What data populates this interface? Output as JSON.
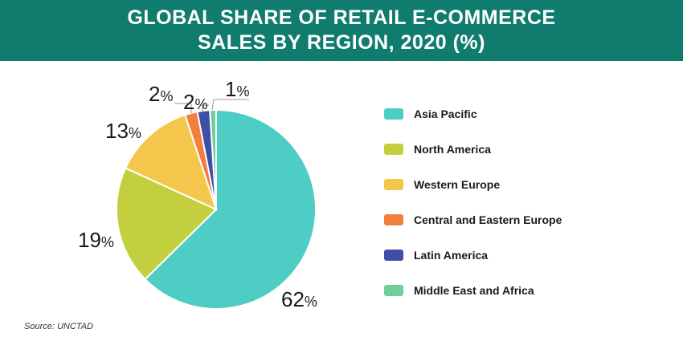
{
  "header": {
    "title_line1": "GLOBAL SHARE OF RETAIL E-COMMERCE",
    "title_line2": "SALES BY REGION, 2020 (%)"
  },
  "chart_data": {
    "type": "pie",
    "title": "GLOBAL SHARE OF RETAIL E-COMMERCE SALES BY REGION, 2020 (%)",
    "unit": "%",
    "categories": [
      "Asia Pacific",
      "North America",
      "Western Europe",
      "Central and Eastern Europe",
      "Latin America",
      "Middle East and Africa"
    ],
    "values": [
      62,
      19,
      13,
      2,
      2,
      1
    ],
    "labels": [
      "62",
      "19",
      "13",
      "2",
      "2",
      "1"
    ],
    "colors": [
      "#4ecdc4",
      "#c3cf3f",
      "#f5c64c",
      "#f27f3e",
      "#3f4ea6",
      "#6fcf97"
    ],
    "legend_position": "right"
  },
  "legend": {
    "items": [
      {
        "label": "Asia Pacific",
        "color": "#4ecdc4"
      },
      {
        "label": "North America",
        "color": "#c3cf3f"
      },
      {
        "label": "Western Europe",
        "color": "#f5c64c"
      },
      {
        "label": "Central and Eastern Europe",
        "color": "#f27f3e"
      },
      {
        "label": "Latin America",
        "color": "#3f4ea6"
      },
      {
        "label": "Middle East and Africa",
        "color": "#6fcf97"
      }
    ]
  },
  "source": "Source: UNCTAD"
}
